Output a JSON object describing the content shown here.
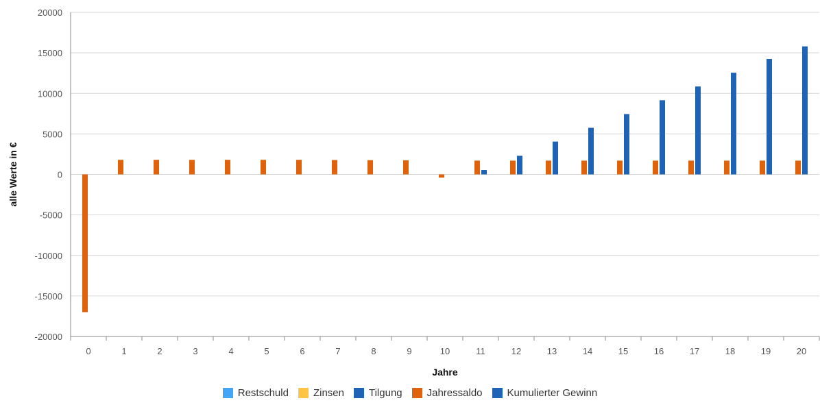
{
  "chart_data": {
    "type": "bar",
    "xlabel": "Jahre",
    "ylabel": "alle Werte in €",
    "ylim": [
      -20000,
      20000
    ],
    "yticks": [
      20000,
      15000,
      10000,
      5000,
      0,
      -5000,
      -10000,
      -15000,
      -20000
    ],
    "categories": [
      "0",
      "1",
      "2",
      "3",
      "4",
      "5",
      "6",
      "7",
      "8",
      "9",
      "10",
      "11",
      "12",
      "13",
      "14",
      "15",
      "16",
      "17",
      "18",
      "19",
      "20"
    ],
    "grid": true,
    "legend_position": "bottom",
    "series": [
      {
        "name": "Restschuld",
        "color": "#42a5f5",
        "values": [
          0,
          0,
          0,
          0,
          0,
          0,
          0,
          0,
          0,
          0,
          0,
          0,
          0,
          0,
          0,
          0,
          0,
          0,
          0,
          0,
          0
        ]
      },
      {
        "name": "Zinsen",
        "color": "#ffc542",
        "values": [
          0,
          0,
          0,
          0,
          0,
          0,
          0,
          0,
          0,
          0,
          0,
          0,
          0,
          0,
          0,
          0,
          0,
          0,
          0,
          0,
          0
        ]
      },
      {
        "name": "Tilgung",
        "color": "#1f63b6",
        "values": [
          0,
          0,
          0,
          0,
          0,
          0,
          0,
          0,
          0,
          0,
          0,
          0,
          0,
          0,
          0,
          0,
          0,
          0,
          0,
          0,
          0
        ]
      },
      {
        "name": "Jahressaldo",
        "color": "#e0620b",
        "values": [
          -17000,
          1800,
          1800,
          1800,
          1800,
          1800,
          1800,
          1780,
          1760,
          1740,
          -400,
          1700,
          1700,
          1700,
          1700,
          1700,
          1700,
          1700,
          1700,
          1700,
          1700
        ]
      },
      {
        "name": "Kumulierter Gewinn",
        "color": "#1f63b6",
        "values": [
          0,
          0,
          0,
          0,
          0,
          0,
          0,
          0,
          0,
          0,
          0,
          550,
          2300,
          4050,
          5750,
          7450,
          9150,
          10850,
          12550,
          14250,
          15800
        ]
      }
    ]
  }
}
